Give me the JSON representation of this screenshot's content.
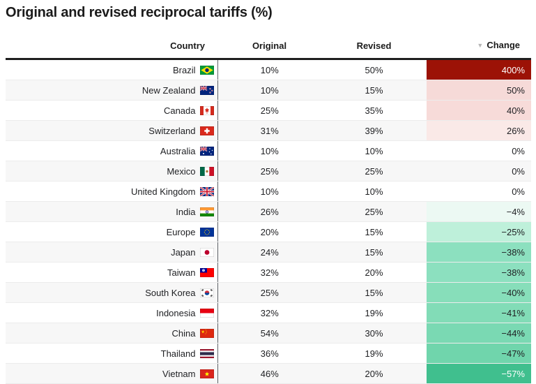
{
  "title": "Original and revised reciprocal tariffs (%)",
  "colors": {
    "max_increase_bg": "#9c1206",
    "max_decrease_bg": "#40bf8e",
    "header_rule": "#1f1f1f",
    "row_stripe": "#f7f7f7",
    "column_divider": "#5f6368",
    "sort_arrow": "#b5b5b5"
  },
  "table": {
    "sort_indicator": "▼",
    "columns": [
      {
        "key": "country",
        "label": "Country"
      },
      {
        "key": "original",
        "label": "Original"
      },
      {
        "key": "revised",
        "label": "Revised"
      },
      {
        "key": "change",
        "label": "Change",
        "sorted": "desc"
      }
    ],
    "rows": [
      {
        "country": "Brazil",
        "flag": "brazil",
        "original": "10%",
        "revised": "50%",
        "change": "400%",
        "change_bg": "#9c1206",
        "change_fg": "#ffffff"
      },
      {
        "country": "New Zealand",
        "flag": "new-zealand",
        "original": "10%",
        "revised": "15%",
        "change": "50%",
        "change_bg": "#f6dad8"
      },
      {
        "country": "Canada",
        "flag": "canada",
        "original": "25%",
        "revised": "35%",
        "change": "40%",
        "change_bg": "#f7dbd9"
      },
      {
        "country": "Switzerland",
        "flag": "switzerland",
        "original": "31%",
        "revised": "39%",
        "change": "26%",
        "change_bg": "#fae9e7"
      },
      {
        "country": "Australia",
        "flag": "australia",
        "original": "10%",
        "revised": "10%",
        "change": "0%",
        "change_bg": ""
      },
      {
        "country": "Mexico",
        "flag": "mexico",
        "original": "25%",
        "revised": "25%",
        "change": "0%",
        "change_bg": ""
      },
      {
        "country": "United Kingdom",
        "flag": "united-kingdom",
        "original": "10%",
        "revised": "10%",
        "change": "0%",
        "change_bg": ""
      },
      {
        "country": "India",
        "flag": "india",
        "original": "26%",
        "revised": "25%",
        "change": "−4%",
        "change_bg": "#ecf9f3"
      },
      {
        "country": "Europe",
        "flag": "europe",
        "original": "20%",
        "revised": "15%",
        "change": "−25%",
        "change_bg": "#bef0da"
      },
      {
        "country": "Japan",
        "flag": "japan",
        "original": "24%",
        "revised": "15%",
        "change": "−38%",
        "change_bg": "#8ce0bf"
      },
      {
        "country": "Taiwan",
        "flag": "taiwan",
        "original": "32%",
        "revised": "20%",
        "change": "−38%",
        "change_bg": "#8ce0bf"
      },
      {
        "country": "South Korea",
        "flag": "south-korea",
        "original": "25%",
        "revised": "15%",
        "change": "−40%",
        "change_bg": "#87deba"
      },
      {
        "country": "Indonesia",
        "flag": "indonesia",
        "original": "32%",
        "revised": "19%",
        "change": "−41%",
        "change_bg": "#82dcb7"
      },
      {
        "country": "China",
        "flag": "china",
        "original": "54%",
        "revised": "30%",
        "change": "−44%",
        "change_bg": "#7ad9b3"
      },
      {
        "country": "Thailand",
        "flag": "thailand",
        "original": "36%",
        "revised": "19%",
        "change": "−47%",
        "change_bg": "#70d5ac"
      },
      {
        "country": "Vietnam",
        "flag": "vietnam",
        "original": "46%",
        "revised": "20%",
        "change": "−57%",
        "change_bg": "#40bf8e",
        "change_fg": "#ffffff"
      }
    ]
  },
  "chart_data": {
    "type": "table",
    "title": "Original and revised reciprocal tariffs (%)",
    "columns": [
      "Country",
      "Original",
      "Revised",
      "Change"
    ],
    "rows": [
      [
        "Brazil",
        10,
        50,
        400
      ],
      [
        "New Zealand",
        10,
        15,
        50
      ],
      [
        "Canada",
        25,
        35,
        40
      ],
      [
        "Switzerland",
        31,
        39,
        26
      ],
      [
        "Australia",
        10,
        10,
        0
      ],
      [
        "Mexico",
        25,
        25,
        0
      ],
      [
        "United Kingdom",
        10,
        10,
        0
      ],
      [
        "India",
        26,
        25,
        -4
      ],
      [
        "Europe",
        20,
        15,
        -25
      ],
      [
        "Japan",
        24,
        15,
        -38
      ],
      [
        "Taiwan",
        32,
        20,
        -38
      ],
      [
        "South Korea",
        25,
        15,
        -40
      ],
      [
        "Indonesia",
        32,
        19,
        -41
      ],
      [
        "China",
        54,
        30,
        -44
      ],
      [
        "Thailand",
        36,
        19,
        -47
      ],
      [
        "Vietnam",
        46,
        20,
        -57
      ]
    ],
    "units": "percent",
    "sort": {
      "column": "Change",
      "direction": "desc"
    },
    "color_scale": {
      "positive": "reds",
      "zero": "none",
      "negative": "greens"
    }
  }
}
